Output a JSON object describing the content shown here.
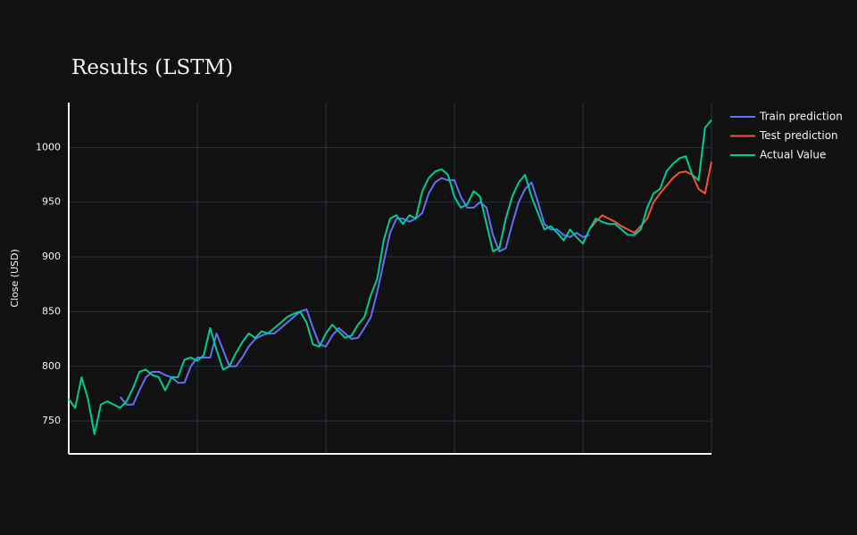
{
  "chart_data": {
    "type": "line",
    "title": "Results (LSTM)",
    "y_label": "Close (USD)",
    "x": [
      0,
      1,
      2,
      3,
      4,
      5,
      6,
      7,
      8,
      9,
      10,
      11,
      12,
      13,
      14,
      15,
      16,
      17,
      18,
      19,
      20,
      21,
      22,
      23,
      24,
      25,
      26,
      27,
      28,
      29,
      30,
      31,
      32,
      33,
      34,
      35,
      36,
      37,
      38,
      39,
      40,
      41,
      42,
      43,
      44,
      45,
      46,
      47,
      48,
      49,
      50,
      51,
      52,
      53,
      54,
      55,
      56,
      57,
      58,
      59,
      60,
      61,
      62,
      63,
      64,
      65,
      66,
      67,
      68,
      69,
      70,
      71,
      72,
      73,
      74,
      75,
      76,
      77,
      78,
      79,
      80,
      81,
      82,
      83,
      84,
      85,
      86,
      87,
      88,
      89,
      90,
      91,
      92,
      93,
      94,
      95,
      96,
      97,
      98,
      99,
      100
    ],
    "xlim": [
      0,
      100
    ],
    "xticks": [
      0,
      20,
      40,
      60,
      80,
      100
    ],
    "ylim": [
      720,
      1041
    ],
    "yticks": [
      750,
      800,
      850,
      900,
      950,
      1000
    ],
    "grid": true,
    "series": [
      {
        "name": "Train prediction",
        "color": "#636efa",
        "values": [
          null,
          null,
          null,
          null,
          null,
          null,
          null,
          null,
          772,
          765,
          765,
          778,
          790,
          795,
          795,
          792,
          790,
          785,
          785,
          800,
          808,
          808,
          808,
          830,
          815,
          800,
          800,
          808,
          818,
          825,
          828,
          830,
          830,
          835,
          840,
          845,
          850,
          852,
          835,
          820,
          818,
          828,
          835,
          830,
          825,
          826,
          835,
          845,
          868,
          895,
          922,
          935,
          935,
          932,
          935,
          940,
          958,
          968,
          972,
          970,
          970,
          955,
          945,
          945,
          950,
          945,
          920,
          905,
          908,
          930,
          950,
          962,
          968,
          950,
          930,
          925,
          925,
          920,
          918,
          922,
          918,
          920,
          null,
          null,
          null,
          null,
          null,
          null,
          null,
          null,
          null,
          null,
          null,
          null,
          null,
          null,
          null,
          null,
          null,
          null,
          null
        ]
      },
      {
        "name": "Test prediction",
        "color": "#EF553B",
        "values": [
          null,
          null,
          null,
          null,
          null,
          null,
          null,
          null,
          null,
          null,
          null,
          null,
          null,
          null,
          null,
          null,
          null,
          null,
          null,
          null,
          null,
          null,
          null,
          null,
          null,
          null,
          null,
          null,
          null,
          null,
          null,
          null,
          null,
          null,
          null,
          null,
          null,
          null,
          null,
          null,
          null,
          null,
          null,
          null,
          null,
          null,
          null,
          null,
          null,
          null,
          null,
          null,
          null,
          null,
          null,
          null,
          null,
          null,
          null,
          null,
          null,
          null,
          null,
          null,
          null,
          null,
          null,
          null,
          null,
          null,
          null,
          null,
          null,
          null,
          null,
          null,
          null,
          null,
          null,
          null,
          null,
          925,
          932,
          938,
          935,
          932,
          928,
          925,
          922,
          928,
          935,
          950,
          958,
          965,
          972,
          977,
          978,
          975,
          962,
          958,
          987
        ]
      },
      {
        "name": "Actual Value",
        "color": "#00cc96",
        "values": [
          770,
          762,
          790,
          770,
          738,
          765,
          768,
          765,
          762,
          768,
          780,
          795,
          797,
          792,
          790,
          778,
          790,
          790,
          806,
          808,
          805,
          810,
          835,
          815,
          797,
          800,
          812,
          822,
          830,
          826,
          832,
          830,
          835,
          840,
          845,
          848,
          850,
          840,
          820,
          818,
          830,
          838,
          832,
          826,
          828,
          838,
          845,
          865,
          880,
          915,
          935,
          938,
          930,
          938,
          935,
          960,
          972,
          978,
          980,
          975,
          955,
          945,
          948,
          960,
          955,
          930,
          905,
          908,
          935,
          955,
          968,
          975,
          955,
          940,
          925,
          928,
          922,
          915,
          925,
          918,
          912,
          925,
          935,
          932,
          930,
          930,
          925,
          920,
          920,
          925,
          945,
          958,
          962,
          978,
          985,
          990,
          992,
          975,
          970,
          1018,
          1025
        ]
      }
    ]
  }
}
